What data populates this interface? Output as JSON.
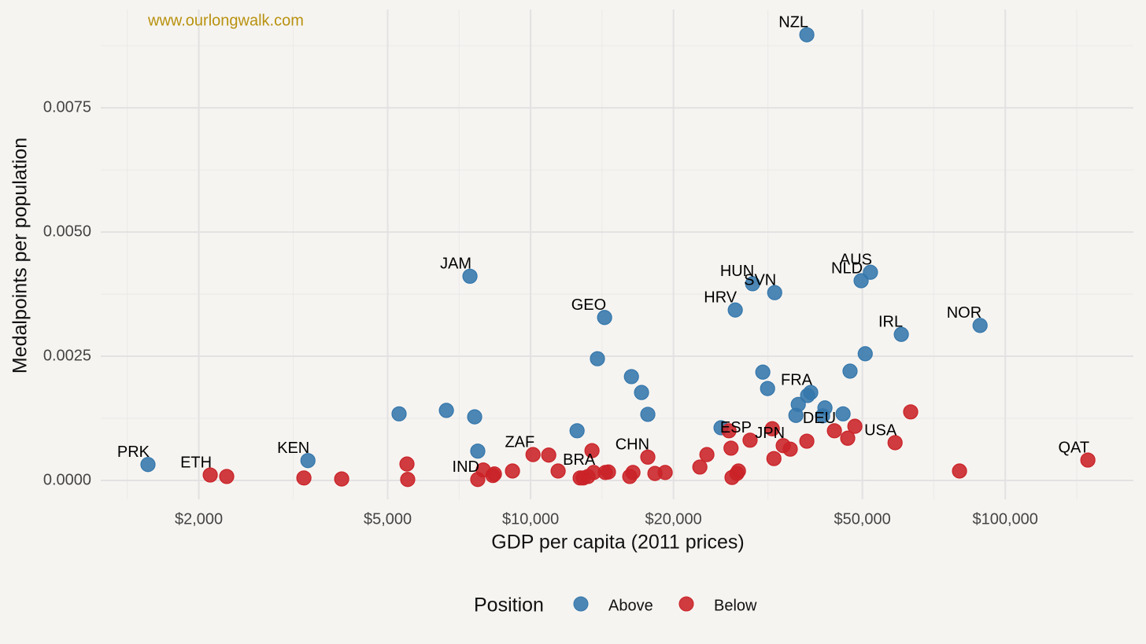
{
  "chart_data": {
    "type": "scatter",
    "watermark": "www.ourlongwalk.com",
    "xlabel": "GDP per capita (2011 prices)",
    "ylabel": "Medalpoints per population",
    "xscale": "log",
    "grid": true,
    "xlim": [
      1243,
      186200
    ],
    "ylim": [
      -0.00038,
      0.00948
    ],
    "xticks": [
      {
        "value": 2000,
        "label": "$2,000"
      },
      {
        "value": 5000,
        "label": "$5,000"
      },
      {
        "value": 10000,
        "label": "$10,000"
      },
      {
        "value": 20000,
        "label": "$20,000"
      },
      {
        "value": 50000,
        "label": "$50,000"
      },
      {
        "value": 100000,
        "label": "$100,000"
      }
    ],
    "x_minor_ticks": [
      1414,
      3162,
      7071,
      14142,
      31623,
      70711,
      141421
    ],
    "yticks": [
      {
        "value": 0,
        "label": "0.0000"
      },
      {
        "value": 0.0025,
        "label": "0.0025"
      },
      {
        "value": 0.005,
        "label": "0.0050"
      },
      {
        "value": 0.0075,
        "label": "0.0075"
      }
    ],
    "y_minor_ticks": [
      0.00125,
      0.00375,
      0.00625,
      0.00875
    ],
    "legend_title": "Position",
    "legend_position": "bottom",
    "series": [
      {
        "name": "Above",
        "color": "#3a84bf",
        "x": [
          1563,
          3396,
          5284,
          6647,
          7624,
          7740,
          7452,
          12530,
          13830,
          14320,
          16310,
          17130,
          17660,
          25190,
          26990,
          29360,
          32680,
          30850,
          31570,
          38190,
          36220,
          36640,
          38340,
          38920,
          41230,
          41700,
          45530,
          47100,
          49700,
          52000,
          50700,
          60400,
          88500
        ],
        "values": [
          0.00032,
          0.0004,
          0.00134,
          0.00141,
          0.00128,
          0.00059,
          0.00411,
          0.001,
          0.00245,
          0.00328,
          0.00209,
          0.00177,
          0.00133,
          0.00106,
          0.00343,
          0.00396,
          0.00378,
          0.00218,
          0.00185,
          0.00897,
          0.00131,
          0.00153,
          0.00171,
          0.00177,
          0.0013,
          0.00146,
          0.00134,
          0.0022,
          0.00402,
          0.00419,
          0.00255,
          0.00294,
          0.00312
        ],
        "labels": [
          "PRK",
          "KEN",
          null,
          null,
          null,
          null,
          "JAM",
          null,
          null,
          "GEO",
          null,
          null,
          null,
          null,
          "HRV",
          "HUN",
          "SVN",
          null,
          null,
          "NZL",
          null,
          null,
          null,
          "FRA",
          null,
          null,
          null,
          null,
          "NLD",
          "AUS",
          null,
          "IRL",
          "NOR"
        ]
      },
      {
        "name": "Below",
        "color": "#e0262b",
        "x": [
          2114,
          2290,
          3330,
          4000,
          5490,
          5510,
          7740,
          7950,
          8330,
          8390,
          9160,
          10120,
          10920,
          11430,
          12720,
          12910,
          13210,
          13470,
          13580,
          14370,
          14590,
          16180,
          16430,
          17660,
          18280,
          19210,
          22730,
          23520,
          26180,
          26440,
          26570,
          27200,
          27410,
          29000,
          32300,
          32560,
          34060,
          35240,
          38190,
          43660,
          46570,
          48220,
          58600,
          63200,
          80100,
          149300
        ],
        "values": [
          0.00011,
          8e-05,
          5e-05,
          3e-05,
          0.00033,
          2e-05,
          2e-05,
          0.00021,
          0.0001,
          0.00013,
          0.00019,
          0.00052,
          0.00051,
          0.00019,
          5e-05,
          5e-05,
          8e-05,
          0.0006,
          0.00016,
          0.00016,
          0.00017,
          8e-05,
          0.00016,
          0.00047,
          0.00014,
          0.00016,
          0.00027,
          0.00052,
          0.001,
          0.00065,
          6e-05,
          0.00014,
          0.00019,
          0.00081,
          0.00104,
          0.00044,
          0.0007,
          0.00063,
          0.00079,
          0.001,
          0.00085,
          0.00109,
          0.00076,
          0.00138,
          0.00019,
          0.00041
        ],
        "labels": [
          "ETH",
          null,
          null,
          null,
          null,
          null,
          "IND",
          null,
          null,
          null,
          null,
          "ZAF",
          null,
          null,
          null,
          null,
          null,
          null,
          "BRA",
          null,
          null,
          null,
          null,
          "CHN",
          null,
          null,
          null,
          null,
          null,
          null,
          null,
          null,
          null,
          "ESP",
          null,
          null,
          "JPN",
          null,
          null,
          "DEU",
          null,
          null,
          "USA",
          null,
          null,
          "QAT"
        ]
      }
    ]
  }
}
